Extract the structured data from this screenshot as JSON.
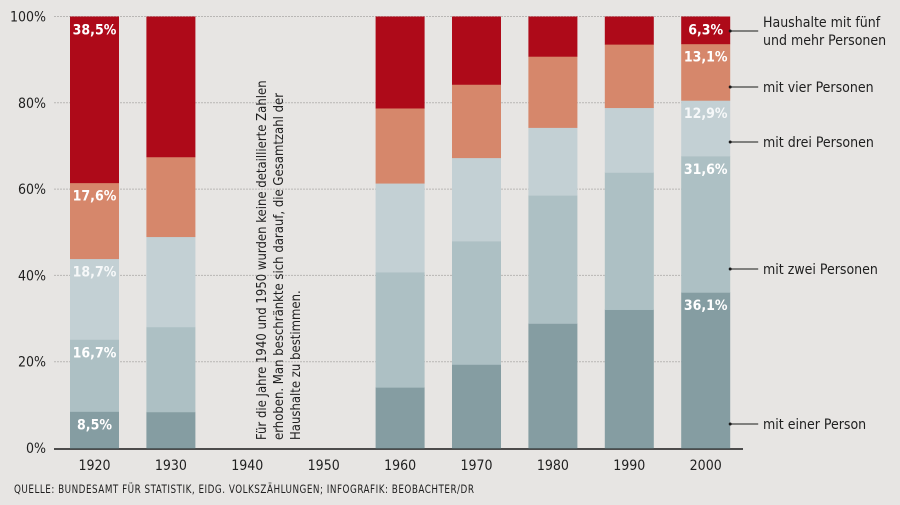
{
  "chart_data": {
    "type": "bar",
    "stacked": true,
    "title": "",
    "xlabel": "",
    "ylabel": "",
    "ylim": [
      0,
      100
    ],
    "y_ticks": [
      "0%",
      "20%",
      "40%",
      "60%",
      "80%",
      "100%"
    ],
    "grid": true,
    "categories": [
      "1920",
      "1930",
      "1940",
      "1950",
      "1960",
      "1970",
      "1980",
      "1990",
      "2000"
    ],
    "series": [
      {
        "name": "mit einer Person",
        "color": "#859da2",
        "values": [
          8.5,
          8.4,
          null,
          null,
          14.1,
          19.4,
          28.9,
          32.1,
          36.1
        ]
      },
      {
        "name": "mit zwei Personen",
        "color": "#adc0c4",
        "values": [
          16.7,
          19.7,
          null,
          null,
          26.7,
          28.6,
          29.7,
          31.8,
          31.6
        ]
      },
      {
        "name": "mit drei Personen",
        "color": "#c3d0d4",
        "values": [
          18.7,
          20.9,
          null,
          null,
          20.6,
          19.3,
          15.7,
          15.0,
          12.9
        ]
      },
      {
        "name": "mit vier Personen",
        "color": "#d6876b",
        "values": [
          17.6,
          18.5,
          null,
          null,
          17.4,
          17.0,
          16.5,
          14.7,
          13.1
        ]
      },
      {
        "name": "Haushalte mit fünf und mehr Personen",
        "color": "#ae0a19",
        "values": [
          38.5,
          32.5,
          null,
          null,
          21.2,
          15.7,
          9.2,
          6.4,
          6.3
        ]
      }
    ],
    "data_labels": {
      "1920": [
        "8,5%",
        "16,7%",
        "18,7%",
        "17,6%",
        "38,5%"
      ],
      "2000": [
        "36,1%",
        "31,6%",
        "12,9%",
        "13,1%",
        "6,3%"
      ]
    },
    "legend": {
      "placement": "right",
      "entries": [
        {
          "lines": [
            "Haushalte mit fünf",
            "und mehr Personen"
          ],
          "series": 4
        },
        {
          "lines": [
            "mit vier Personen"
          ],
          "series": 3
        },
        {
          "lines": [
            "mit drei Personen"
          ],
          "series": 2
        },
        {
          "lines": [
            "mit zwei Personen"
          ],
          "series": 1
        },
        {
          "lines": [
            "mit einer Person"
          ],
          "series": 0
        }
      ]
    },
    "annotation": {
      "lines": [
        "Für die Jahre 1940 und 1950 wurden keine detaillierte Zahlen",
        "erhoben. Man beschränkte sich darauf, die Gesamtzahl der",
        "Haushalte zu bestimmen."
      ]
    }
  },
  "source": "QUELLE: BUNDESAMT FÜR STATISTIK, EIDG. VOLKSZÄHLUNGEN; INFOGRAFIK: BEOBACHTER/DR"
}
